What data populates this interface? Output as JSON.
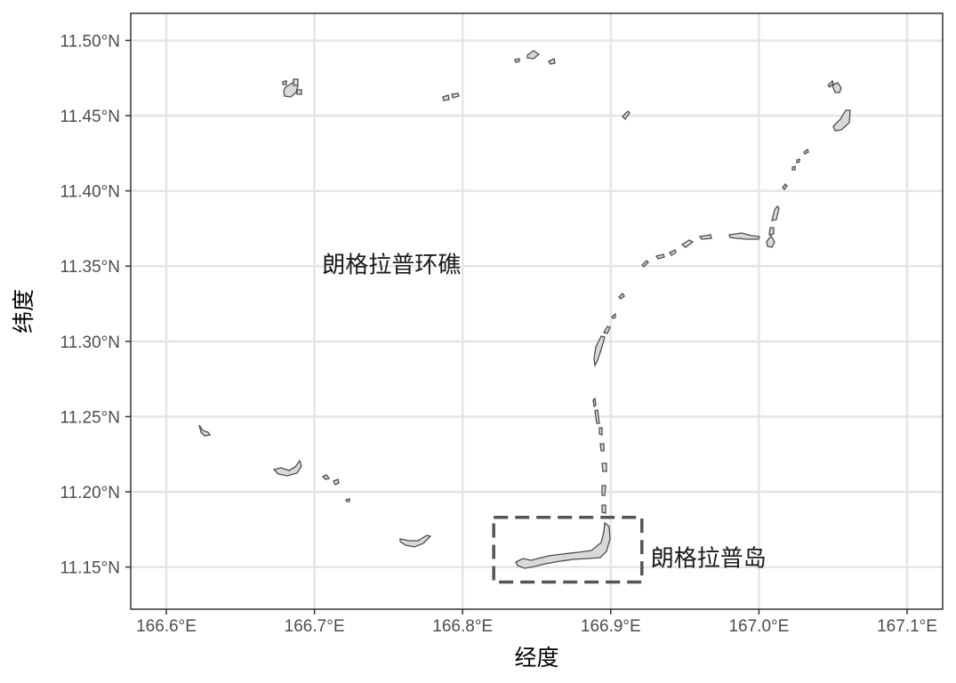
{
  "map": {
    "xlabel": "经度",
    "ylabel": "纬度",
    "x_ticks": [
      "166.6°E",
      "166.7°E",
      "166.8°E",
      "166.9°E",
      "167.0°E",
      "167.1°E"
    ],
    "x_tick_values": [
      166.6,
      166.7,
      166.8,
      166.9,
      167.0,
      167.1
    ],
    "y_ticks": [
      "11.15°N",
      "11.20°N",
      "11.25°N",
      "11.30°N",
      "11.35°N",
      "11.40°N",
      "11.45°N",
      "11.50°N"
    ],
    "y_tick_values": [
      11.15,
      11.2,
      11.25,
      11.3,
      11.35,
      11.4,
      11.45,
      11.5
    ],
    "xlim": [
      166.576,
      167.124
    ],
    "ylim": [
      11.122,
      11.518
    ],
    "labels": {
      "atoll": "朗格拉普环礁",
      "island": "朗格拉普岛"
    },
    "atoll_label_position": {
      "lon": 166.752,
      "lat": 11.35
    },
    "island_label_position": {
      "lon": 166.927,
      "lat": 11.155
    },
    "highlight_box": {
      "lon": [
        166.821,
        166.921
      ],
      "lat": [
        11.14,
        11.183
      ]
    },
    "colors": {
      "land_fill": "#d9d9d9",
      "land_outline": "#4d4d4d",
      "grid": "#e5e5e5",
      "box_outline": "#555555"
    },
    "grid": true
  }
}
